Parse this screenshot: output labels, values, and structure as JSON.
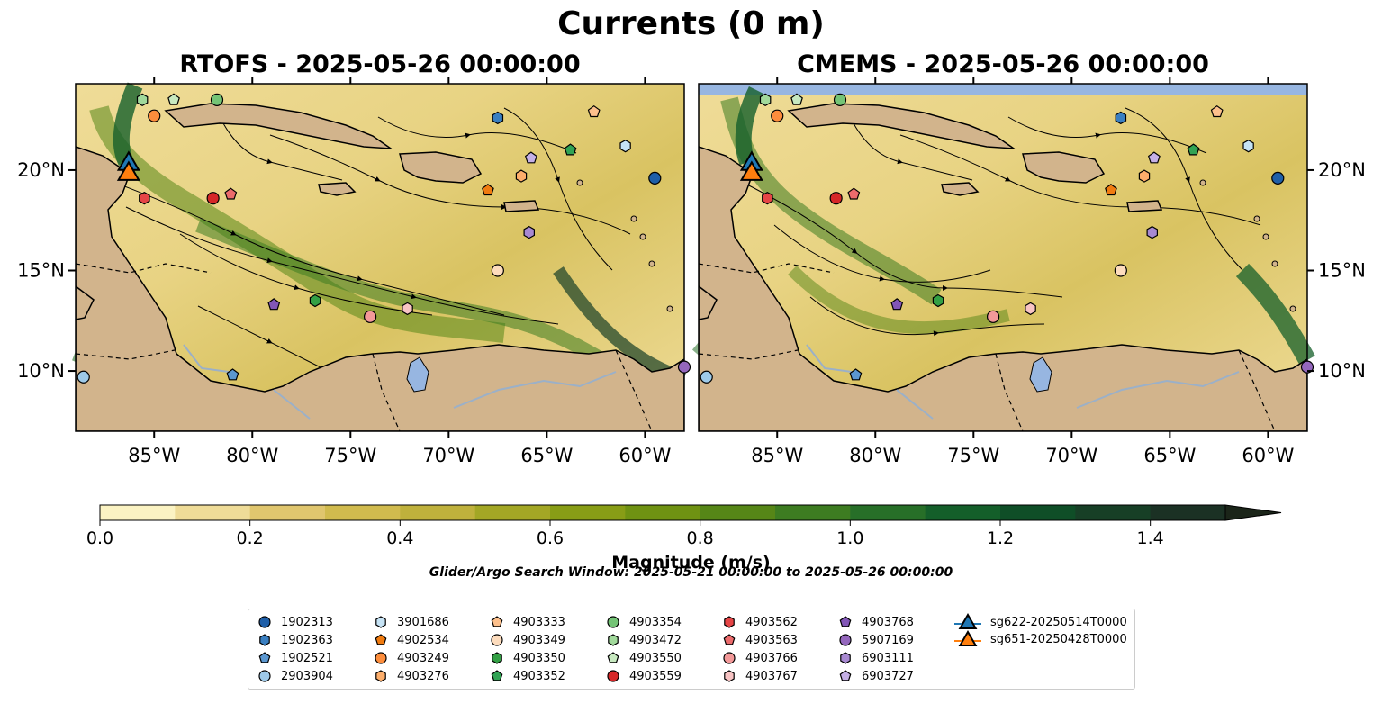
{
  "title": "Currents (0 m)",
  "panels": [
    {
      "title": "RTOFS - 2025-05-26 00:00:00",
      "y_tick_side": "left"
    },
    {
      "title": "CMEMS - 2025-05-26 00:00:00",
      "y_tick_side": "right"
    }
  ],
  "map_extent": {
    "lon": [
      -89,
      -58
    ],
    "lat": [
      7,
      24.3
    ]
  },
  "x_ticks": [
    {
      "value": -85,
      "label": "85°W"
    },
    {
      "value": -80,
      "label": "80°W"
    },
    {
      "value": -75,
      "label": "75°W"
    },
    {
      "value": -70,
      "label": "70°W"
    },
    {
      "value": -65,
      "label": "65°W"
    },
    {
      "value": -60,
      "label": "60°W"
    }
  ],
  "y_ticks": [
    {
      "value": 10,
      "label": "10°N"
    },
    {
      "value": 15,
      "label": "15°N"
    },
    {
      "value": 20,
      "label": "20°N"
    }
  ],
  "colorbar": {
    "label": "Magnitude (m/s)",
    "range": [
      0,
      1.5
    ],
    "extend": "max",
    "ticks": [
      "0.0",
      "0.2",
      "0.4",
      "0.6",
      "0.8",
      "1.0",
      "1.2",
      "1.4"
    ],
    "colors": [
      "#fbf3c3",
      "#efdc98",
      "#e0c66e",
      "#d1bb4e",
      "#bfb13c",
      "#a3a725",
      "#889d16",
      "#6f9212",
      "#568617",
      "#3d7c21",
      "#276f28",
      "#145f2a",
      "#0f4e27",
      "#173f26",
      "#1b3124",
      "#1b2519"
    ]
  },
  "search_window": "Glider/Argo Search Window: 2025-05-21 00:00:00 to 2025-05-26 00:00:00",
  "colors": {
    "land": "#d2b48c",
    "lake": "#97b6e1",
    "rivers": "#9bb0c8"
  },
  "markers": [
    {
      "id": "1902313",
      "shape": "circle",
      "color": "#1f5fa8",
      "lon": -59.5,
      "lat": 19.6
    },
    {
      "id": "1902363",
      "shape": "hexagon",
      "color": "#3a7fc1",
      "lon": -67.5,
      "lat": 22.6
    },
    {
      "id": "1902521",
      "shape": "pentagon",
      "color": "#5b97d0",
      "lon": -81,
      "lat": 9.8
    },
    {
      "id": "2903904",
      "shape": "circle",
      "color": "#9ecae9",
      "lon": -88.6,
      "lat": 9.7
    },
    {
      "id": "3901686",
      "shape": "hexagon",
      "color": "#c6e3f5",
      "lon": -61,
      "lat": 21.2
    },
    {
      "id": "4902534",
      "shape": "pentagon",
      "color": "#f07b10",
      "lon": -68,
      "lat": 19
    },
    {
      "id": "4903249",
      "shape": "circle",
      "color": "#fd8d3c",
      "lon": -85,
      "lat": 22.7
    },
    {
      "id": "4903276",
      "shape": "hexagon",
      "color": "#fdae6b",
      "lon": -66.3,
      "lat": 19.7
    },
    {
      "id": "4903333",
      "shape": "pentagon",
      "color": "#fdc08c",
      "lon": -62.6,
      "lat": 22.9
    },
    {
      "id": "4903349",
      "shape": "circle",
      "color": "#fddcbd",
      "lon": -67.5,
      "lat": 15
    },
    {
      "id": "4903350",
      "shape": "hexagon",
      "color": "#33a045",
      "lon": -76.8,
      "lat": 13.5
    },
    {
      "id": "4903352",
      "shape": "pentagon",
      "color": "#31a354",
      "lon": -63.8,
      "lat": 21
    },
    {
      "id": "4903354",
      "shape": "circle",
      "color": "#74c476",
      "lon": -81.8,
      "lat": 23.5
    },
    {
      "id": "4903472",
      "shape": "hexagon",
      "color": "#a1d99b",
      "lon": -85.6,
      "lat": 23.5
    },
    {
      "id": "4903550",
      "shape": "pentagon",
      "color": "#c7e9c0",
      "lon": -84,
      "lat": 23.5
    },
    {
      "id": "4903559",
      "shape": "circle",
      "color": "#d62728",
      "lon": -82,
      "lat": 18.6
    },
    {
      "id": "4903562",
      "shape": "hexagon",
      "color": "#e64546",
      "lon": -85.5,
      "lat": 18.6
    },
    {
      "id": "4903563",
      "shape": "pentagon",
      "color": "#ec6b6c",
      "lon": -81.1,
      "lat": 18.8
    },
    {
      "id": "4903766",
      "shape": "circle",
      "color": "#f39999",
      "lon": -74,
      "lat": 12.7
    },
    {
      "id": "4903767",
      "shape": "hexagon",
      "color": "#f8c4c4",
      "lon": -72.1,
      "lat": 13.1
    },
    {
      "id": "4903768",
      "shape": "pentagon",
      "color": "#8256b7",
      "lon": -78.9,
      "lat": 13.3
    },
    {
      "id": "5907169",
      "shape": "circle",
      "color": "#9467bd",
      "lon": -58,
      "lat": 10.2
    },
    {
      "id": "6903111",
      "shape": "hexagon",
      "color": "#a889d1",
      "lon": -65.9,
      "lat": 16.9
    },
    {
      "id": "6903727",
      "shape": "pentagon",
      "color": "#c5b0e6",
      "lon": -65.8,
      "lat": 20.6
    },
    {
      "id": "sg622-20250514T0000",
      "shape": "triangle",
      "color": "#1f77b4",
      "lon": -86.3,
      "lat": 20.3
    },
    {
      "id": "sg651-20250428T0000",
      "shape": "triangle",
      "color": "#ff7f0e",
      "lon": -86.3,
      "lat": 19.8
    }
  ]
}
